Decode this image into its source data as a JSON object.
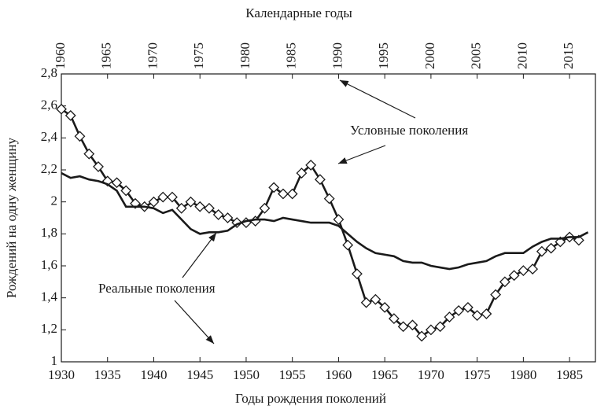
{
  "chart_data": {
    "type": "line",
    "xlabel": "Годы рождения поколений",
    "x2label": "Календарные годы",
    "ylabel": "Рождений на одну женщину",
    "xlim": [
      1930,
      1987.8
    ],
    "x2lim": [
      1960,
      2017.8
    ],
    "ylim": [
      1,
      2.8
    ],
    "xticks": [
      1930,
      1935,
      1940,
      1945,
      1950,
      1955,
      1960,
      1965,
      1970,
      1975,
      1980,
      1985
    ],
    "x2ticks": [
      1960,
      1965,
      1970,
      1975,
      1980,
      1985,
      1990,
      1995,
      2000,
      2005,
      2010,
      2015
    ],
    "yticks": [
      1,
      {
        "value": 1.2,
        "label": "1,2"
      },
      {
        "value": 1.4,
        "label": "1,4"
      },
      {
        "value": 1.6,
        "label": "1,6"
      },
      {
        "value": 1.8,
        "label": "1,8"
      },
      2,
      {
        "value": 2.2,
        "label": "2,2"
      },
      {
        "value": 2.4,
        "label": "2,4"
      },
      {
        "value": 2.6,
        "label": "2,6"
      },
      {
        "value": 2.8,
        "label": "2,8"
      }
    ],
    "series": [
      {
        "name": "Условные поколения",
        "color": "#1a1a1a",
        "axis": "x2",
        "marker": "diamond",
        "x": [
          1960,
          1961,
          1962,
          1963,
          1964,
          1965,
          1966,
          1967,
          1968,
          1969,
          1970,
          1971,
          1972,
          1973,
          1974,
          1975,
          1976,
          1977,
          1978,
          1979,
          1980,
          1981,
          1982,
          1983,
          1984,
          1985,
          1986,
          1987,
          1988,
          1989,
          1990,
          1991,
          1992,
          1993,
          1994,
          1995,
          1996,
          1997,
          1998,
          1999,
          2000,
          2001,
          2002,
          2003,
          2004,
          2005,
          2006,
          2007,
          2008,
          2009,
          2010,
          2011,
          2012,
          2013,
          2014,
          2015,
          2016
        ],
        "values": [
          2.58,
          2.54,
          2.41,
          2.3,
          2.22,
          2.13,
          2.12,
          2.07,
          1.99,
          1.97,
          2.0,
          2.03,
          2.03,
          1.96,
          2.0,
          1.97,
          1.96,
          1.92,
          1.9,
          1.87,
          1.87,
          1.88,
          1.96,
          2.09,
          2.05,
          2.05,
          2.18,
          2.23,
          2.14,
          2.02,
          1.89,
          1.73,
          1.55,
          1.37,
          1.39,
          1.34,
          1.27,
          1.22,
          1.23,
          1.16,
          1.2,
          1.22,
          1.28,
          1.32,
          1.34,
          1.29,
          1.3,
          1.42,
          1.5,
          1.54,
          1.57,
          1.58,
          1.69,
          1.71,
          1.75,
          1.78,
          1.76
        ]
      },
      {
        "name": "Реальные поколения",
        "color": "#1a1a1a",
        "axis": "x",
        "x": [
          1930,
          1931,
          1932,
          1933,
          1934,
          1935,
          1936,
          1937,
          1938,
          1939,
          1940,
          1941,
          1942,
          1943,
          1944,
          1945,
          1946,
          1947,
          1948,
          1949,
          1950,
          1951,
          1952,
          1953,
          1954,
          1955,
          1956,
          1957,
          1958,
          1959,
          1960,
          1961,
          1962,
          1963,
          1964,
          1965,
          1966,
          1967,
          1968,
          1969,
          1970,
          1971,
          1972,
          1973,
          1974,
          1975,
          1976,
          1977,
          1978,
          1979,
          1980,
          1981,
          1982,
          1983,
          1984,
          1985,
          1986,
          1987
        ],
        "values": [
          2.18,
          2.15,
          2.16,
          2.14,
          2.13,
          2.11,
          2.07,
          1.97,
          1.97,
          1.97,
          1.96,
          1.93,
          1.95,
          1.89,
          1.83,
          1.8,
          1.81,
          1.81,
          1.82,
          1.86,
          1.88,
          1.89,
          1.89,
          1.88,
          1.9,
          1.89,
          1.88,
          1.87,
          1.87,
          1.87,
          1.85,
          1.8,
          1.75,
          1.71,
          1.68,
          1.67,
          1.66,
          1.63,
          1.62,
          1.62,
          1.6,
          1.59,
          1.58,
          1.59,
          1.61,
          1.62,
          1.63,
          1.66,
          1.68,
          1.68,
          1.68,
          1.72,
          1.75,
          1.77,
          1.77,
          1.78,
          1.78,
          1.81
        ]
      }
    ]
  }
}
